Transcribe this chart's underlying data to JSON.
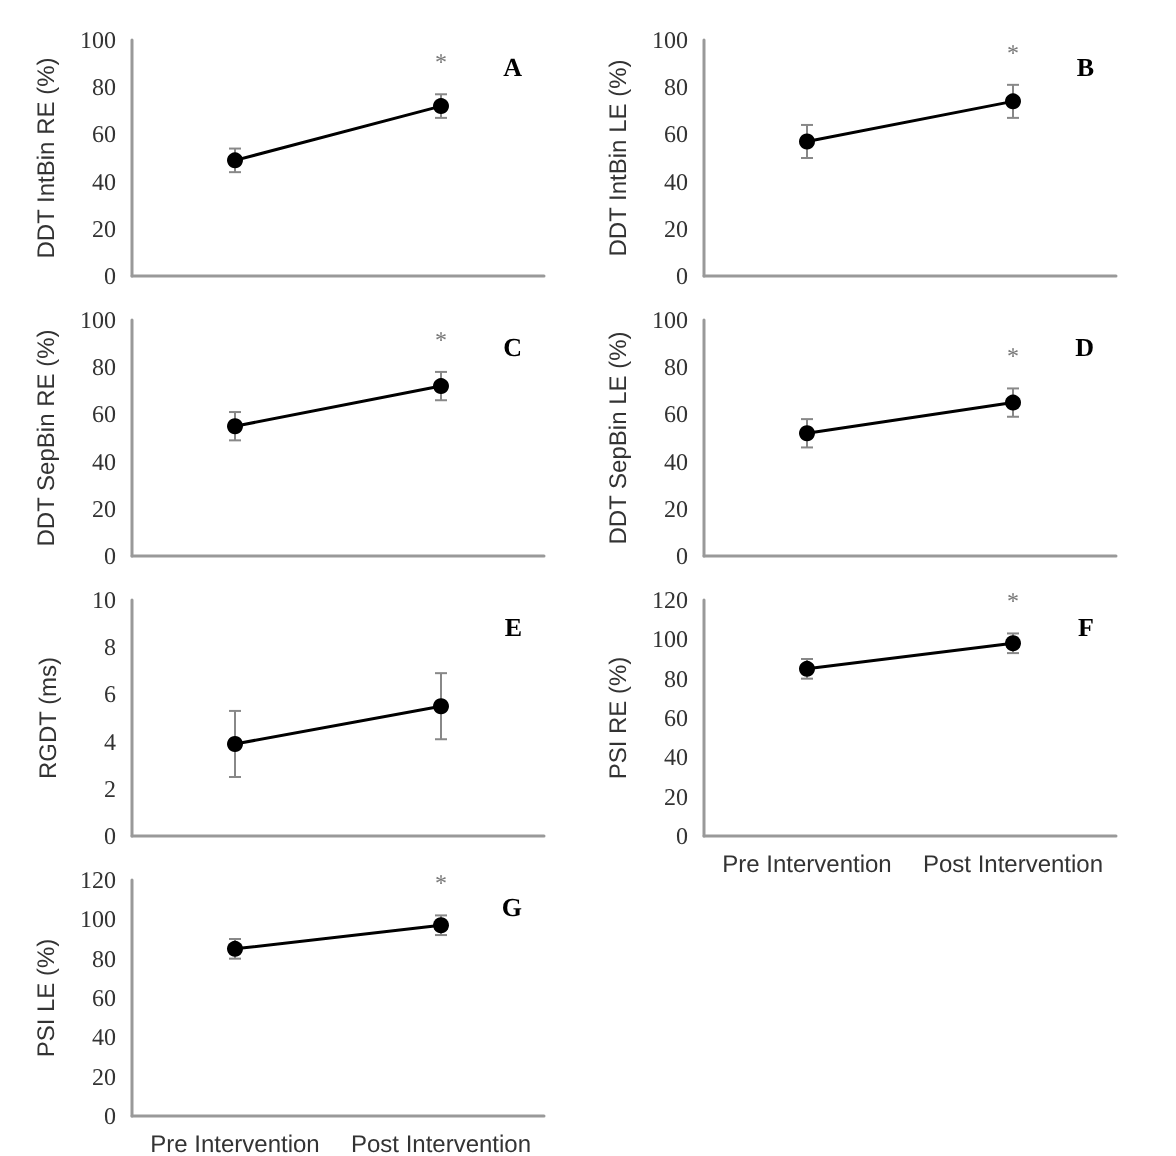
{
  "chart_data": [
    {
      "type": "line",
      "title": "A",
      "ylabel": "DDT IntBin RE (%)",
      "categories": [
        null,
        null
      ],
      "series": [
        {
          "color": "#000000",
          "values": [
            49,
            72
          ],
          "errors": [
            5,
            5
          ]
        }
      ],
      "ylim": [
        0,
        100
      ],
      "yticks": [
        0,
        20,
        40,
        60,
        80,
        100
      ],
      "annotations": [
        "*"
      ],
      "tick_labels": "y",
      "marker": "circle",
      "grid": false
    },
    {
      "type": "line",
      "title": "B",
      "ylabel": "DDT IntBin LE (%)",
      "categories": [
        null,
        null
      ],
      "series": [
        {
          "color": "#000000",
          "values": [
            57,
            74
          ],
          "errors": [
            7,
            7
          ]
        }
      ],
      "ylim": [
        0,
        100
      ],
      "yticks": [
        0,
        20,
        40,
        60,
        80,
        100
      ],
      "annotations": [
        "*"
      ],
      "tick_labels": "y",
      "marker": "circle",
      "grid": false
    },
    {
      "type": "line",
      "title": "C",
      "ylabel": "DDT SepBin RE (%)",
      "categories": [
        null,
        null
      ],
      "series": [
        {
          "color": "#000000",
          "values": [
            55,
            72
          ],
          "errors": [
            6,
            6
          ]
        }
      ],
      "ylim": [
        0,
        100
      ],
      "yticks": [
        0,
        20,
        40,
        60,
        80,
        100
      ],
      "annotations": [
        "*"
      ],
      "tick_labels": "y",
      "marker": "circle",
      "grid": false
    },
    {
      "type": "line",
      "title": "D",
      "ylabel": "DDT SepBin LE (%)",
      "categories": [
        null,
        null
      ],
      "series": [
        {
          "color": "#000000",
          "values": [
            52,
            65
          ],
          "errors": [
            6,
            6
          ]
        }
      ],
      "ylim": [
        0,
        100
      ],
      "yticks": [
        0,
        20,
        40,
        60,
        80,
        100
      ],
      "annotations": [
        "*"
      ],
      "tick_labels": "y",
      "marker": "circle",
      "grid": false
    },
    {
      "type": "line",
      "title": "E",
      "ylabel": "RGDT (ms)",
      "categories": [
        null,
        null
      ],
      "series": [
        {
          "color": "#000000",
          "values": [
            3.9,
            5.5
          ],
          "errors": [
            1.4,
            1.4
          ]
        }
      ],
      "ylim": [
        0,
        10
      ],
      "yticks": [
        0,
        2,
        4,
        6,
        8,
        10
      ],
      "tick_labels": "y",
      "marker": "circle",
      "grid": false
    },
    {
      "type": "line",
      "title": "F",
      "ylabel": "PSI RE (%)",
      "categories": [
        "Pre Intervention",
        "Post Intervention"
      ],
      "series": [
        {
          "color": "#000000",
          "values": [
            85,
            98
          ],
          "errors": [
            5,
            5
          ]
        }
      ],
      "ylim": [
        0,
        120
      ],
      "yticks": [
        0,
        20,
        40,
        60,
        80,
        100,
        120
      ],
      "annotations": [
        "*"
      ],
      "marker": "circle",
      "grid": false
    },
    {
      "type": "line",
      "title": "G",
      "ylabel": "PSI LE (%)",
      "categories": [
        "Pre Intervention",
        "Post Intervention"
      ],
      "series": [
        {
          "color": "#000000",
          "values": [
            85,
            97
          ],
          "errors": [
            5,
            5
          ]
        }
      ],
      "ylim": [
        0,
        120
      ],
      "yticks": [
        0,
        20,
        40,
        60,
        80,
        100,
        120
      ],
      "annotations": [
        "*"
      ],
      "marker": "circle",
      "grid": false
    }
  ]
}
